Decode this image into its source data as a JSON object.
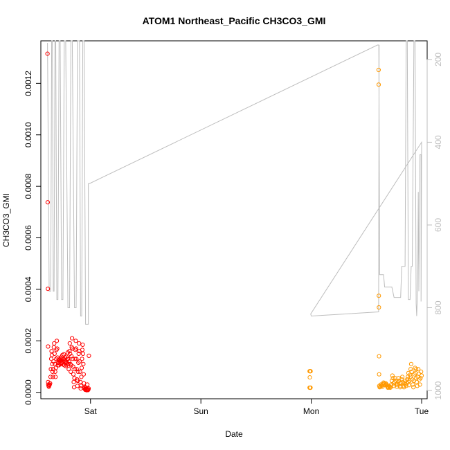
{
  "chart_data": {
    "type": "scatter",
    "title": "ATOM1 Northeast_Pacific CH3CO3_GMI",
    "xlabel": "Date",
    "ylabel": "CH3CO3_GMI",
    "x_unit": "days",
    "xlim": [
      -0.45,
      3.05
    ],
    "ylim": [
      -2.5e-05,
      0.001365
    ],
    "x_ticks": [
      {
        "value": 0,
        "label": "Sat"
      },
      {
        "value": 1,
        "label": "Sun"
      },
      {
        "value": 2,
        "label": "Mon"
      },
      {
        "value": 3,
        "label": "Tue"
      }
    ],
    "y_ticks": [
      0.0,
      0.0002,
      0.0004,
      0.0006,
      0.0008,
      0.001,
      0.0012
    ],
    "y_tick_labels": [
      "0.0000",
      "0.0002",
      "0.0004",
      "0.0006",
      "0.0008",
      "0.0010",
      "0.0012"
    ],
    "right_axis": {
      "label": "",
      "lim": [
        1020,
        155
      ],
      "ticks": [
        200,
        400,
        600,
        800,
        1000
      ],
      "color": "#bdbdbd"
    },
    "grid": false,
    "series": [
      {
        "color": "#ff0000",
        "marker": "open-circle",
        "points": [
          [
            -0.39,
            0.001315
          ],
          [
            -0.388,
            0.000738
          ],
          [
            -0.386,
            0.000402
          ],
          [
            -0.385,
            0.000178
          ],
          [
            -0.384,
            4e-05
          ],
          [
            -0.382,
            3e-05
          ],
          [
            -0.38,
            2.5e-05
          ],
          [
            -0.377,
            2.2e-05
          ],
          [
            -0.373,
            2.8e-05
          ],
          [
            -0.37,
            3e-05
          ],
          [
            -0.366,
            3.5e-05
          ],
          [
            -0.362,
            6e-05
          ],
          [
            -0.359,
            9e-05
          ],
          [
            -0.356,
            0.00013
          ],
          [
            -0.353,
            0.00016
          ],
          [
            -0.35,
            0.000145
          ],
          [
            -0.347,
            0.00011
          ],
          [
            -0.344,
            8e-05
          ],
          [
            -0.341,
            6e-05
          ],
          [
            -0.338,
            9e-05
          ],
          [
            -0.335,
            0.00012
          ],
          [
            -0.332,
            0.000175
          ],
          [
            -0.329,
            0.00019
          ],
          [
            -0.326,
            0.00015
          ],
          [
            -0.323,
            0.00011
          ],
          [
            -0.32,
            8e-05
          ],
          [
            -0.317,
            6e-05
          ],
          [
            -0.314,
            9.5e-05
          ],
          [
            -0.311,
            0.00013
          ],
          [
            -0.308,
            0.000165
          ],
          [
            -0.305,
            0.0002
          ],
          [
            -0.302,
            0.00017
          ],
          [
            -0.299,
            0.000135
          ],
          [
            -0.296,
            0.000105
          ],
          [
            -0.293,
            0.000115
          ],
          [
            -0.29,
            0.000125
          ],
          [
            -0.287,
            0.000105
          ],
          [
            -0.284,
            0.000118
          ],
          [
            -0.281,
            0.000128
          ],
          [
            -0.278,
            0.000112
          ],
          [
            -0.275,
            0.000122
          ],
          [
            -0.272,
            0.000132
          ],
          [
            -0.269,
            0.00011
          ],
          [
            -0.266,
            0.000125
          ],
          [
            -0.263,
            0.000138
          ],
          [
            -0.26,
            0.000115
          ],
          [
            -0.257,
            0.00013
          ],
          [
            -0.254,
            0.000145
          ],
          [
            -0.251,
            0.00012
          ],
          [
            -0.248,
            0.000108
          ],
          [
            -0.245,
            0.000128
          ],
          [
            -0.242,
            0.000148
          ],
          [
            -0.239,
            0.000122
          ],
          [
            -0.236,
            0.000105
          ],
          [
            -0.233,
            0.000118
          ],
          [
            -0.23,
            0.000135
          ],
          [
            -0.227,
            0.000112
          ],
          [
            -0.224,
            0.000102
          ],
          [
            -0.221,
            0.00012
          ],
          [
            -0.218,
            0.000138
          ],
          [
            -0.215,
            0.000115
          ],
          [
            -0.212,
            0.000108
          ],
          [
            -0.209,
            0.00013
          ],
          [
            -0.206,
            0.000155
          ],
          [
            -0.203,
            0.00013
          ],
          [
            -0.2,
            0.00011
          ],
          [
            -0.197,
            9e-05
          ],
          [
            -0.194,
            0.00012
          ],
          [
            -0.191,
            0.00016
          ],
          [
            -0.188,
            0.00019
          ],
          [
            -0.185,
            0.00015
          ],
          [
            -0.182,
            0.00011
          ],
          [
            -0.179,
            8e-05
          ],
          [
            -0.176,
            0.000105
          ],
          [
            -0.173,
            0.00014
          ],
          [
            -0.17,
            0.000175
          ],
          [
            -0.167,
            0.00021
          ],
          [
            -0.164,
            0.00017
          ],
          [
            -0.161,
            0.00013
          ],
          [
            -0.158,
            0.0001
          ],
          [
            -0.155,
            7e-05
          ],
          [
            -0.152,
            4e-05
          ],
          [
            -0.149,
            2e-05
          ],
          [
            -0.146,
            5.5e-05
          ],
          [
            -0.143,
            9e-05
          ],
          [
            -0.14,
            0.00013
          ],
          [
            -0.137,
            0.000165
          ],
          [
            -0.134,
            0.0002
          ],
          [
            -0.131,
            0.00017
          ],
          [
            -0.128,
            0.00013
          ],
          [
            -0.125,
            9e-05
          ],
          [
            -0.122,
            5e-05
          ],
          [
            -0.119,
            2.5e-05
          ],
          [
            -0.116,
            4.5e-05
          ],
          [
            -0.113,
            8e-05
          ],
          [
            -0.11,
            0.000115
          ],
          [
            -0.107,
            0.00015
          ],
          [
            -0.104,
            0.00019
          ],
          [
            -0.101,
            0.00016
          ],
          [
            -0.098,
            0.00012
          ],
          [
            -0.095,
            8e-05
          ],
          [
            -0.092,
            4e-05
          ],
          [
            -0.089,
            1.5e-05
          ],
          [
            -0.086,
            2.5e-05
          ],
          [
            -0.083,
            6e-05
          ],
          [
            -0.08,
            9.5e-05
          ],
          [
            -0.077,
            0.00013
          ],
          [
            -0.074,
            0.000165
          ],
          [
            -0.071,
            0.000185
          ],
          [
            -0.068,
            0.00015
          ],
          [
            -0.065,
            0.00011
          ],
          [
            -0.062,
            7e-05
          ],
          [
            -0.059,
            3.5e-05
          ],
          [
            -0.056,
            1.5e-05
          ],
          [
            -0.053,
            2e-05
          ],
          [
            -0.05,
            1.2e-05
          ],
          [
            -0.047,
            1e-05
          ],
          [
            -0.044,
            1.4e-05
          ],
          [
            -0.041,
            1.8e-05
          ],
          [
            -0.038,
            1e-05
          ],
          [
            -0.035,
            8e-06
          ],
          [
            -0.032,
            1.3e-05
          ],
          [
            -0.029,
            3e-05
          ],
          [
            -0.026,
            1.2e-05
          ],
          [
            -0.023,
            9e-06
          ],
          [
            -0.02,
            1.1e-05
          ],
          [
            -0.017,
            1.5e-05
          ],
          [
            -0.015,
            0.000142
          ]
        ]
      },
      {
        "color": "#ff9900",
        "marker": "open-circle",
        "points": [
          [
            1.985,
            8.2e-05
          ],
          [
            1.988,
            8.2e-05
          ],
          [
            1.991,
            8.2e-05
          ],
          [
            1.994,
            8.2e-05
          ],
          [
            1.987,
            5.8e-05
          ],
          [
            1.985,
            1.8e-05
          ],
          [
            1.99,
            1.8e-05
          ],
          [
            1.993,
            1.8e-05
          ],
          [
            2.61,
            0.001252
          ],
          [
            2.611,
            0.001195
          ],
          [
            2.612,
            0.000375
          ],
          [
            2.613,
            0.00033
          ],
          [
            2.614,
            0.00014
          ],
          [
            2.615,
            7e-05
          ],
          [
            2.616,
            2.5e-05
          ],
          [
            2.62,
            2e-05
          ],
          [
            2.625,
            2.2e-05
          ],
          [
            2.63,
            3e-05
          ],
          [
            2.635,
            2.5e-05
          ],
          [
            2.64,
            2.8e-05
          ],
          [
            2.645,
            2.2e-05
          ],
          [
            2.65,
            3.2e-05
          ],
          [
            2.655,
            3.8e-05
          ],
          [
            2.66,
            3.5e-05
          ],
          [
            2.665,
            2.8e-05
          ],
          [
            2.67,
            3e-05
          ],
          [
            2.675,
            3.5e-05
          ],
          [
            2.68,
            3.2e-05
          ],
          [
            2.685,
            2.8e-05
          ],
          [
            2.69,
            2.2e-05
          ],
          [
            2.695,
            1.8e-05
          ],
          [
            2.7,
            2e-05
          ],
          [
            2.705,
            2.5e-05
          ],
          [
            2.71,
            2.2e-05
          ],
          [
            2.715,
            1.8e-05
          ],
          [
            2.72,
            2e-05
          ],
          [
            2.725,
            3e-05
          ],
          [
            2.73,
            4.5e-05
          ],
          [
            2.735,
            6.5e-05
          ],
          [
            2.74,
            5.5e-05
          ],
          [
            2.745,
            3.5e-05
          ],
          [
            2.75,
            2.5e-05
          ],
          [
            2.755,
            4e-05
          ],
          [
            2.76,
            5.5e-05
          ],
          [
            2.765,
            4.5e-05
          ],
          [
            2.77,
            3e-05
          ],
          [
            2.775,
            2.2e-05
          ],
          [
            2.78,
            3e-05
          ],
          [
            2.785,
            4e-05
          ],
          [
            2.79,
            5.5e-05
          ],
          [
            2.795,
            4.5e-05
          ],
          [
            2.8,
            3.5e-05
          ],
          [
            2.805,
            2e-05
          ],
          [
            2.81,
            2.5e-05
          ],
          [
            2.815,
            3.5e-05
          ],
          [
            2.82,
            5e-05
          ],
          [
            2.825,
            6e-05
          ],
          [
            2.83,
            4e-05
          ],
          [
            2.835,
            2.5e-05
          ],
          [
            2.84,
            2e-05
          ],
          [
            2.845,
            3.5e-05
          ],
          [
            2.85,
            4.5e-05
          ],
          [
            2.855,
            3e-05
          ],
          [
            2.86,
            2.5e-05
          ],
          [
            2.865,
            3.5e-05
          ],
          [
            2.87,
            5e-05
          ],
          [
            2.875,
            6e-05
          ],
          [
            2.88,
            4e-05
          ],
          [
            2.885,
            2.8e-05
          ],
          [
            2.89,
            4.5e-05
          ],
          [
            2.895,
            6.8e-05
          ],
          [
            2.9,
            9e-05
          ],
          [
            2.905,
            0.00011
          ],
          [
            2.91,
            8e-05
          ],
          [
            2.915,
            5e-05
          ],
          [
            2.92,
            3e-05
          ],
          [
            2.925,
            2e-05
          ],
          [
            2.93,
            4.5e-05
          ],
          [
            2.935,
            7e-05
          ],
          [
            2.94,
            9.5e-05
          ],
          [
            2.945,
            7.5e-05
          ],
          [
            2.95,
            5.5e-05
          ],
          [
            2.955,
            4e-05
          ],
          [
            2.96,
            2.5e-05
          ],
          [
            2.965,
            6e-05
          ],
          [
            2.97,
            9e-05
          ],
          [
            2.975,
            7.2e-05
          ],
          [
            2.98,
            5e-05
          ],
          [
            2.985,
            3e-05
          ],
          [
            2.99,
            5.5e-05
          ],
          [
            2.995,
            8e-05
          ],
          [
            3.0,
            6.5e-05
          ],
          [
            2.9,
            6e-05
          ],
          [
            2.95,
            9e-05
          ],
          [
            2.88,
            7.5e-05
          ]
        ]
      }
    ],
    "right_series": {
      "color": "#bdbdbd",
      "points": [
        [
          -0.39,
          160
        ],
        [
          -0.385,
          350
        ],
        [
          -0.375,
          760
        ],
        [
          -0.36,
          760
        ],
        [
          -0.352,
          155
        ],
        [
          -0.345,
          155
        ],
        [
          -0.338,
          760
        ],
        [
          -0.33,
          760
        ],
        [
          -0.322,
          155
        ],
        [
          -0.315,
          155
        ],
        [
          -0.305,
          780
        ],
        [
          -0.295,
          780
        ],
        [
          -0.285,
          155
        ],
        [
          -0.275,
          155
        ],
        [
          -0.262,
          780
        ],
        [
          -0.25,
          780
        ],
        [
          -0.238,
          155
        ],
        [
          -0.225,
          155
        ],
        [
          -0.205,
          800
        ],
        [
          -0.19,
          800
        ],
        [
          -0.178,
          155
        ],
        [
          -0.165,
          155
        ],
        [
          -0.145,
          800
        ],
        [
          -0.13,
          800
        ],
        [
          -0.118,
          155
        ],
        [
          -0.1,
          155
        ],
        [
          -0.09,
          820
        ],
        [
          -0.08,
          820
        ],
        [
          -0.07,
          155
        ],
        [
          -0.058,
          155
        ],
        [
          -0.045,
          840
        ],
        [
          -0.03,
          840
        ],
        [
          -0.02,
          840
        ],
        [
          -0.02,
          500
        ],
        [
          -0.01,
          500
        ],
        [
          2.6,
          165
        ],
        [
          2.612,
          165
        ],
        [
          2.62,
          720
        ],
        [
          2.655,
          720
        ],
        [
          2.665,
          750
        ],
        [
          2.73,
          750
        ],
        [
          2.75,
          775
        ],
        [
          2.81,
          775
        ],
        [
          2.82,
          700
        ],
        [
          2.85,
          700
        ],
        [
          2.86,
          155
        ],
        [
          2.87,
          155
        ],
        [
          2.88,
          780
        ],
        [
          2.895,
          780
        ],
        [
          2.905,
          700
        ],
        [
          2.915,
          700
        ],
        [
          2.93,
          155
        ],
        [
          2.94,
          155
        ],
        [
          2.95,
          790
        ],
        [
          2.955,
          820
        ],
        [
          2.965,
          740
        ],
        [
          2.97,
          520
        ],
        [
          2.975,
          760
        ],
        [
          2.985,
          430
        ],
        [
          2.995,
          430
        ],
        [
          2.995,
          785
        ],
        [
          3.0,
          400
        ],
        [
          1.995,
          815
        ],
        [
          2.0,
          820
        ],
        [
          2.61,
          810
        ],
        [
          2.615,
          165
        ]
      ]
    }
  }
}
